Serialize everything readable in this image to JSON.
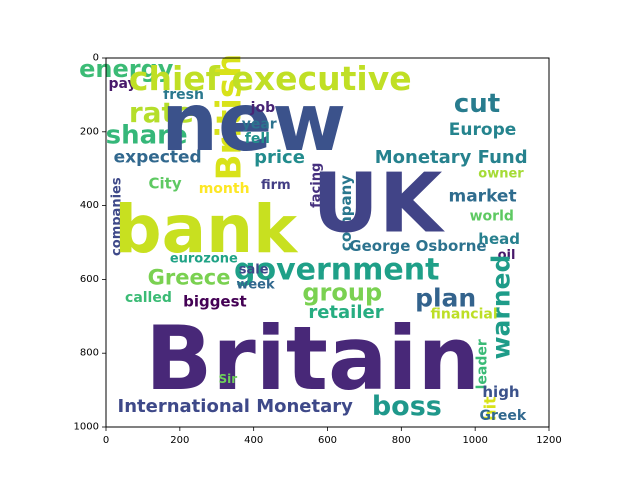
{
  "chart_data": {
    "type": "wordcloud",
    "title": "",
    "xlabel": "",
    "ylabel": "",
    "xlim": [
      0,
      1200
    ],
    "ylim": [
      1000,
      0
    ],
    "x_ticks": [
      0,
      200,
      400,
      600,
      800,
      1000,
      1200
    ],
    "y_ticks": [
      0,
      200,
      400,
      600,
      800,
      1000
    ],
    "grid": false,
    "words": [
      {
        "text": "energy",
        "x": 55,
        "y": 30,
        "color": "#3bbb75"
      },
      {
        "text": "pay",
        "x": 45,
        "y": 70,
        "color": "#48196b"
      },
      {
        "text": "fresh",
        "x": 210,
        "y": 100,
        "color": "#2a788e"
      },
      {
        "text": "rate",
        "x": 150,
        "y": 148,
        "color": "#b5de2b"
      },
      {
        "text": "share",
        "x": 110,
        "y": 210,
        "color": "#35b779"
      },
      {
        "text": "expected",
        "x": 140,
        "y": 270,
        "color": "#31688e"
      },
      {
        "text": "City",
        "x": 160,
        "y": 340,
        "color": "#5ec962"
      },
      {
        "text": "month",
        "x": 320,
        "y": 355,
        "color": "#fde725"
      },
      {
        "text": "companies",
        "x": 30,
        "y": 430,
        "color": "#3e4989"
      },
      {
        "text": "bank",
        "x": 270,
        "y": 465,
        "color": "#c8e020"
      },
      {
        "text": "British",
        "x": 335,
        "y": 160,
        "color": "#d8e219"
      },
      {
        "text": "chief executive",
        "x": 445,
        "y": 55,
        "color": "#c0df25"
      },
      {
        "text": "new",
        "x": 400,
        "y": 175,
        "color": "#3b528b"
      },
      {
        "text": "job",
        "x": 425,
        "y": 135,
        "color": "#482475"
      },
      {
        "text": "year",
        "x": 415,
        "y": 180,
        "color": "#2c728e"
      },
      {
        "text": "fell",
        "x": 410,
        "y": 220,
        "color": "#21918c"
      },
      {
        "text": "price",
        "x": 470,
        "y": 270,
        "color": "#228c8d"
      },
      {
        "text": "firm",
        "x": 460,
        "y": 345,
        "color": "#433e85"
      },
      {
        "text": "facing",
        "x": 570,
        "y": 345,
        "color": "#46307e"
      },
      {
        "text": "company",
        "x": 650,
        "y": 420,
        "color": "#2a788e"
      },
      {
        "text": "UK",
        "x": 735,
        "y": 395,
        "color": "#414487"
      },
      {
        "text": "cut",
        "x": 1005,
        "y": 125,
        "color": "#287c8e"
      },
      {
        "text": "Europe",
        "x": 1020,
        "y": 195,
        "color": "#25848e"
      },
      {
        "text": "Monetary Fund",
        "x": 935,
        "y": 270,
        "color": "#26828e"
      },
      {
        "text": "owner",
        "x": 1070,
        "y": 315,
        "color": "#a5db36"
      },
      {
        "text": "market",
        "x": 1020,
        "y": 375,
        "color": "#2f6c8e"
      },
      {
        "text": "world",
        "x": 1045,
        "y": 430,
        "color": "#5ec962"
      },
      {
        "text": "head",
        "x": 1065,
        "y": 490,
        "color": "#27808e"
      },
      {
        "text": "oil",
        "x": 1085,
        "y": 535,
        "color": "#48186a"
      },
      {
        "text": "George Osborne",
        "x": 845,
        "y": 510,
        "color": "#2c728e"
      },
      {
        "text": "government",
        "x": 625,
        "y": 575,
        "color": "#1fa088"
      },
      {
        "text": "Greece",
        "x": 225,
        "y": 595,
        "color": "#7ad151"
      },
      {
        "text": "eurozone",
        "x": 265,
        "y": 545,
        "color": "#20a386"
      },
      {
        "text": "sale",
        "x": 400,
        "y": 575,
        "color": "#3e4989"
      },
      {
        "text": "week",
        "x": 405,
        "y": 615,
        "color": "#31688e"
      },
      {
        "text": "called",
        "x": 115,
        "y": 650,
        "color": "#3bbb75"
      },
      {
        "text": "biggest",
        "x": 295,
        "y": 660,
        "color": "#440154"
      },
      {
        "text": "group",
        "x": 640,
        "y": 635,
        "color": "#7ad151"
      },
      {
        "text": "plan",
        "x": 920,
        "y": 650,
        "color": "#33638d"
      },
      {
        "text": "warned",
        "x": 1070,
        "y": 675,
        "color": "#1e9c89"
      },
      {
        "text": "retailer",
        "x": 650,
        "y": 690,
        "color": "#26ad81"
      },
      {
        "text": "financial",
        "x": 970,
        "y": 695,
        "color": "#bddf26"
      },
      {
        "text": "Britain",
        "x": 560,
        "y": 815,
        "color": "#482878"
      },
      {
        "text": "Sir",
        "x": 330,
        "y": 870,
        "color": "#6ccd5a"
      },
      {
        "text": "leader",
        "x": 1020,
        "y": 830,
        "color": "#3aba76"
      },
      {
        "text": "high",
        "x": 1070,
        "y": 905,
        "color": "#3b528b"
      },
      {
        "text": "International Monetary",
        "x": 350,
        "y": 945,
        "color": "#3e4989"
      },
      {
        "text": "boss",
        "x": 815,
        "y": 945,
        "color": "#1f988b"
      },
      {
        "text": "hit",
        "x": 1040,
        "y": 950,
        "color": "#d8e219"
      },
      {
        "text": "Greek",
        "x": 1075,
        "y": 970,
        "color": "#31688e"
      }
    ]
  }
}
